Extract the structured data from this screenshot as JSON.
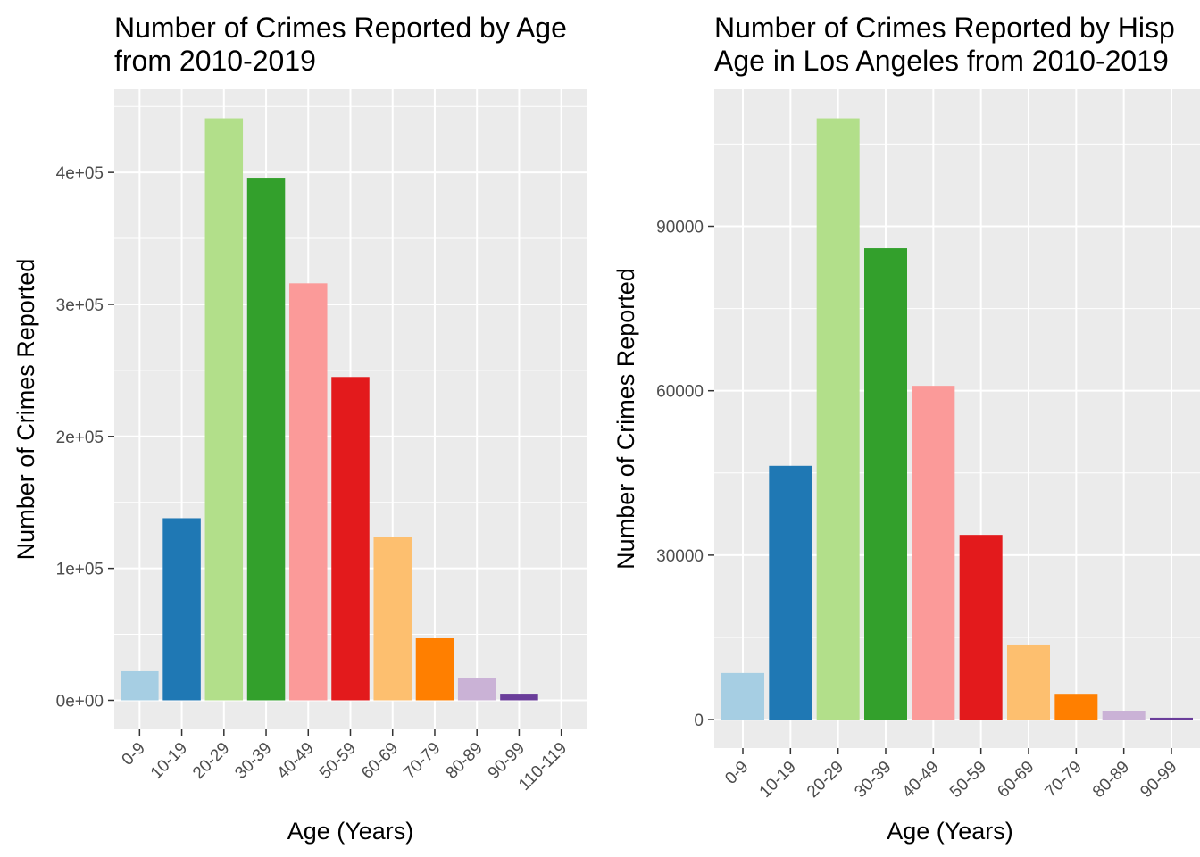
{
  "chart_data": [
    {
      "type": "bar",
      "title": [
        "Number of Crimes Reported by Age",
        "from 2010-2019"
      ],
      "xlabel": "Age (Years)",
      "ylabel": "Number of Crimes Reported",
      "categories": [
        "0-9",
        "10-19",
        "20-29",
        "30-39",
        "40-49",
        "50-59",
        "60-69",
        "70-79",
        "80-89",
        "90-99",
        "110-119"
      ],
      "values": [
        22000,
        138000,
        441000,
        396000,
        316000,
        245000,
        124000,
        47000,
        17000,
        5000,
        0
      ],
      "colors": [
        "#a6cee3",
        "#1f78b4",
        "#b2df8a",
        "#33a02c",
        "#fb9a99",
        "#e31a1c",
        "#fdbf6f",
        "#ff7f00",
        "#cab2d6",
        "#6a3d9a",
        "#6a3d9a"
      ],
      "ylim": [
        -22000,
        463000
      ],
      "yticks": [
        0,
        100000,
        200000,
        300000,
        400000
      ],
      "ytick_labels": [
        "0e+00",
        "1e+05",
        "2e+05",
        "3e+05",
        "4e+05"
      ],
      "grid": true,
      "legend": "none"
    },
    {
      "type": "bar",
      "title": [
        "Number of Crimes Reported by Hisp",
        "Age in Los Angeles from 2010-2019"
      ],
      "xlabel": "Age (Years)",
      "ylabel": "Number of Crimes Reported",
      "categories": [
        "0-9",
        "10-19",
        "20-29",
        "30-39",
        "40-49",
        "50-59",
        "60-69",
        "70-79",
        "80-89",
        "90-99"
      ],
      "values": [
        8500,
        46300,
        109700,
        86000,
        60900,
        33700,
        13700,
        4700,
        1600,
        350
      ],
      "colors": [
        "#a6cee3",
        "#1f78b4",
        "#b2df8a",
        "#33a02c",
        "#fb9a99",
        "#e31a1c",
        "#fdbf6f",
        "#ff7f00",
        "#cab2d6",
        "#6a3d9a"
      ],
      "ylim": [
        -5200,
        115000
      ],
      "yticks": [
        0,
        30000,
        60000,
        90000
      ],
      "ytick_labels": [
        "0",
        "30000",
        "60000",
        "90000"
      ],
      "grid": true,
      "legend": "none"
    }
  ]
}
